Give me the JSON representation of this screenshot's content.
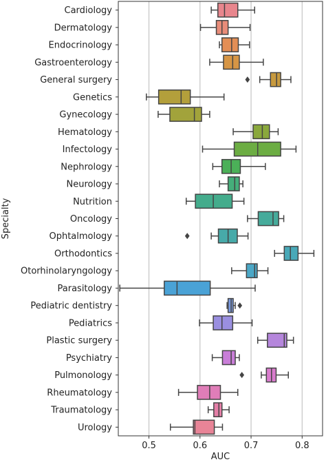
{
  "chart_data": {
    "type": "box",
    "orientation": "horizontal",
    "xlabel": "AUC",
    "ylabel": "Specialty",
    "xlim": [
      0.44,
      0.84
    ],
    "xticks": [
      "0.5",
      "0.6",
      "0.7",
      "0.8"
    ],
    "grid": "vertical",
    "categories": [
      {
        "name": "Cardiology",
        "color": "#e8868d",
        "min": 0.622,
        "q1": 0.635,
        "median": 0.648,
        "q3": 0.674,
        "max": 0.707,
        "outliers": []
      },
      {
        "name": "Dermatology",
        "color": "#e88c79",
        "min": 0.601,
        "q1": 0.632,
        "median": 0.643,
        "q3": 0.655,
        "max": 0.698,
        "outliers": []
      },
      {
        "name": "Endocrinology",
        "color": "#e38e55",
        "min": 0.638,
        "q1": 0.643,
        "median": 0.662,
        "q3": 0.675,
        "max": 0.697,
        "outliers": []
      },
      {
        "name": "Gastroenterology",
        "color": "#d69545",
        "min": 0.619,
        "q1": 0.646,
        "median": 0.664,
        "q3": 0.677,
        "max": 0.724,
        "outliers": []
      },
      {
        "name": "General surgery",
        "color": "#c79a3f",
        "min": 0.717,
        "q1": 0.738,
        "median": 0.75,
        "q3": 0.758,
        "max": 0.778,
        "outliers": [
          0.693
        ]
      },
      {
        "name": "Genetics",
        "color": "#b39f3b",
        "min": 0.495,
        "q1": 0.519,
        "median": 0.563,
        "q3": 0.581,
        "max": 0.647,
        "outliers": []
      },
      {
        "name": "Gynecology",
        "color": "#a2a33b",
        "min": 0.518,
        "q1": 0.541,
        "median": 0.589,
        "q3": 0.603,
        "max": 0.619,
        "outliers": []
      },
      {
        "name": "Hematology",
        "color": "#8aa83c",
        "min": 0.665,
        "q1": 0.704,
        "median": 0.722,
        "q3": 0.736,
        "max": 0.753,
        "outliers": []
      },
      {
        "name": "Infectology",
        "color": "#6cad43",
        "min": 0.605,
        "q1": 0.667,
        "median": 0.713,
        "q3": 0.758,
        "max": 0.788,
        "outliers": []
      },
      {
        "name": "Nephrology",
        "color": "#4bb058",
        "min": 0.625,
        "q1": 0.643,
        "median": 0.661,
        "q3": 0.679,
        "max": 0.728,
        "outliers": []
      },
      {
        "name": "Neurology",
        "color": "#45ae7a",
        "min": 0.638,
        "q1": 0.655,
        "median": 0.668,
        "q3": 0.677,
        "max": 0.684,
        "outliers": []
      },
      {
        "name": "Nutrition",
        "color": "#44ac8c",
        "min": 0.573,
        "q1": 0.591,
        "median": 0.626,
        "q3": 0.663,
        "max": 0.686,
        "outliers": []
      },
      {
        "name": "Oncology",
        "color": "#46ab9b",
        "min": 0.693,
        "q1": 0.714,
        "median": 0.743,
        "q3": 0.754,
        "max": 0.764,
        "outliers": []
      },
      {
        "name": "Ophtalmology",
        "color": "#47aaa9",
        "min": 0.622,
        "q1": 0.636,
        "median": 0.655,
        "q3": 0.673,
        "max": 0.694,
        "outliers": [
          0.575
        ]
      },
      {
        "name": "Orthodontics",
        "color": "#49a9b8",
        "min": 0.746,
        "q1": 0.765,
        "median": 0.777,
        "q3": 0.792,
        "max": 0.823,
        "outliers": []
      },
      {
        "name": "Otorhinolaryngology",
        "color": "#4ba7c6",
        "min": 0.662,
        "q1": 0.691,
        "median": 0.707,
        "q3": 0.712,
        "max": 0.733,
        "outliers": []
      },
      {
        "name": "Parasitology",
        "color": "#4aa2d6",
        "min": 0.443,
        "q1": 0.53,
        "median": 0.555,
        "q3": 0.62,
        "max": 0.708,
        "outliers": []
      },
      {
        "name": "Pediatric dentistry",
        "color": "#7b9be0",
        "min": 0.653,
        "q1": 0.655,
        "median": 0.661,
        "q3": 0.665,
        "max": 0.669,
        "outliers": [
          0.678
        ]
      },
      {
        "name": "Pediatrics",
        "color": "#9a8fe0",
        "min": 0.599,
        "q1": 0.626,
        "median": 0.643,
        "q3": 0.664,
        "max": 0.702,
        "outliers": []
      },
      {
        "name": "Plastic surgery",
        "color": "#b586dc",
        "min": 0.713,
        "q1": 0.732,
        "median": 0.765,
        "q3": 0.77,
        "max": 0.783,
        "outliers": []
      },
      {
        "name": "Psychiatry",
        "color": "#c97ed8",
        "min": 0.624,
        "q1": 0.644,
        "median": 0.661,
        "q3": 0.669,
        "max": 0.677,
        "outliers": []
      },
      {
        "name": "Pulmonology",
        "color": "#d97ccd",
        "min": 0.72,
        "q1": 0.73,
        "median": 0.74,
        "q3": 0.749,
        "max": 0.773,
        "outliers": [
          0.682
        ]
      },
      {
        "name": "Rheumatology",
        "color": "#e07db8",
        "min": 0.558,
        "q1": 0.595,
        "median": 0.619,
        "q3": 0.64,
        "max": 0.674,
        "outliers": []
      },
      {
        "name": "Traumatology",
        "color": "#e47fa7",
        "min": 0.616,
        "q1": 0.627,
        "median": 0.637,
        "q3": 0.643,
        "max": 0.657,
        "outliers": []
      },
      {
        "name": "Urology",
        "color": "#e88497",
        "min": 0.542,
        "q1": 0.587,
        "median": 0.59,
        "q3": 0.628,
        "max": 0.644,
        "outliers": []
      }
    ]
  }
}
